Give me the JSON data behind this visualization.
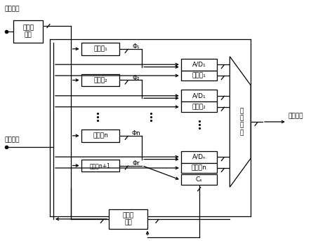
{
  "bg_color": "#ffffff",
  "labels": {
    "ext_clock": "外部时钟",
    "clock_div": "时钟分\n频器",
    "analog_in": "模拟输入",
    "delay1": "延迟线₁",
    "delay2": "延迟线₂",
    "delayn": "延迟线n",
    "delayn1": "延迟线n+1",
    "phi1": "Φ₁",
    "phi2": "Φ₂",
    "phin": "Φn",
    "phir": "Φr",
    "ad1": "A/D₁",
    "ad2": "A/D₁",
    "adn": "A/Dₙ",
    "det1": "探测器₁",
    "det2": "探测器₂",
    "detn": "探测器n",
    "cs": "Cₛ",
    "mux": "多\n路\n开\n关",
    "cal": "校准控\n制器",
    "digital_out": "数字输出"
  },
  "lw": 0.9,
  "fs": 6.5,
  "fs_small": 5.5
}
